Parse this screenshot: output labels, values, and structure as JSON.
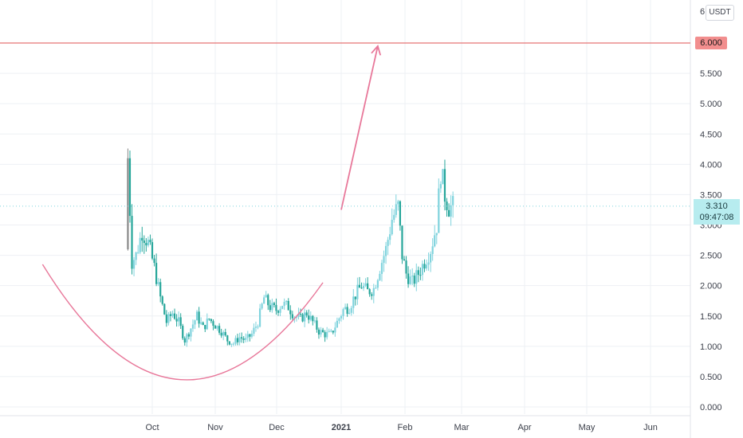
{
  "currency_peek": "6",
  "currency": "USDT",
  "horizontal_line_label": "6.000",
  "last_price": "3.310",
  "countdown": "09:47:08",
  "colors": {
    "up": "#26a69a",
    "up_light": "#7fd3dd",
    "down": "#888888",
    "hline": "#e57373",
    "drawing": "#e8789a",
    "grid": "#eef0f4",
    "price_label_bg": "#b7ecef"
  },
  "chart_data": {
    "type": "candlestick",
    "title": "",
    "xlabel": "",
    "ylabel": "",
    "ylim": [
      -0.05,
      6.6
    ],
    "y_ticks": [
      "0.000",
      "0.500",
      "1.000",
      "1.500",
      "2.000",
      "2.500",
      "3.000",
      "3.500",
      "4.000",
      "4.500",
      "5.000",
      "5.500",
      "6.000"
    ],
    "x_ticks": [
      "Oct",
      "Nov",
      "Dec",
      "2021",
      "Feb",
      "Mar",
      "Apr",
      "May",
      "Jun"
    ],
    "x_tick_bold": [
      false,
      false,
      false,
      true,
      false,
      false,
      false,
      false,
      false
    ],
    "grid": true,
    "price_trend": [
      [
        0,
        4.1
      ],
      [
        2,
        2.4
      ],
      [
        4,
        2.5
      ],
      [
        7,
        2.9
      ],
      [
        10,
        2.7
      ],
      [
        13,
        2.3
      ],
      [
        16,
        1.8
      ],
      [
        19,
        1.4
      ],
      [
        22,
        1.55
      ],
      [
        25,
        1.4
      ],
      [
        28,
        1.1
      ],
      [
        31,
        1.3
      ],
      [
        34,
        1.5
      ],
      [
        37,
        1.3
      ],
      [
        40,
        1.45
      ],
      [
        43,
        1.35
      ],
      [
        46,
        1.25
      ],
      [
        49,
        1.1
      ],
      [
        52,
        1.05
      ],
      [
        55,
        1.15
      ],
      [
        58,
        1.1
      ],
      [
        61,
        1.2
      ],
      [
        64,
        1.4
      ],
      [
        67,
        1.8
      ],
      [
        70,
        1.65
      ],
      [
        73,
        1.6
      ],
      [
        76,
        1.7
      ],
      [
        79,
        1.65
      ],
      [
        82,
        1.5
      ],
      [
        85,
        1.45
      ],
      [
        88,
        1.55
      ],
      [
        91,
        1.4
      ],
      [
        94,
        1.25
      ],
      [
        97,
        1.2
      ],
      [
        100,
        1.2
      ],
      [
        103,
        1.4
      ],
      [
        106,
        1.6
      ],
      [
        109,
        1.65
      ],
      [
        112,
        1.85
      ],
      [
        115,
        2.0
      ],
      [
        118,
        1.9
      ],
      [
        121,
        1.95
      ],
      [
        124,
        2.3
      ],
      [
        127,
        2.6
      ],
      [
        130,
        3.1
      ],
      [
        133,
        3.3
      ],
      [
        135,
        2.5
      ],
      [
        137,
        2.2
      ],
      [
        140,
        2.05
      ],
      [
        143,
        2.2
      ],
      [
        146,
        2.4
      ],
      [
        149,
        2.6
      ],
      [
        152,
        3.0
      ],
      [
        154,
        3.9
      ],
      [
        156,
        3.5
      ],
      [
        158,
        3.3
      ],
      [
        160,
        3.3
      ]
    ],
    "trend_x_domain": [
      0,
      160
    ],
    "trend_x_pixel_map": "candles_start_oct_minus_12_days",
    "horizontal_level": 6.0,
    "cup_curve": {
      "start": [
        -42,
        2.35
      ],
      "bottom": [
        26,
        0.45
      ],
      "end": [
        96,
        2.05
      ]
    },
    "arrow": {
      "from": [
        105,
        3.25
      ],
      "to": [
        123,
        5.95
      ]
    }
  }
}
